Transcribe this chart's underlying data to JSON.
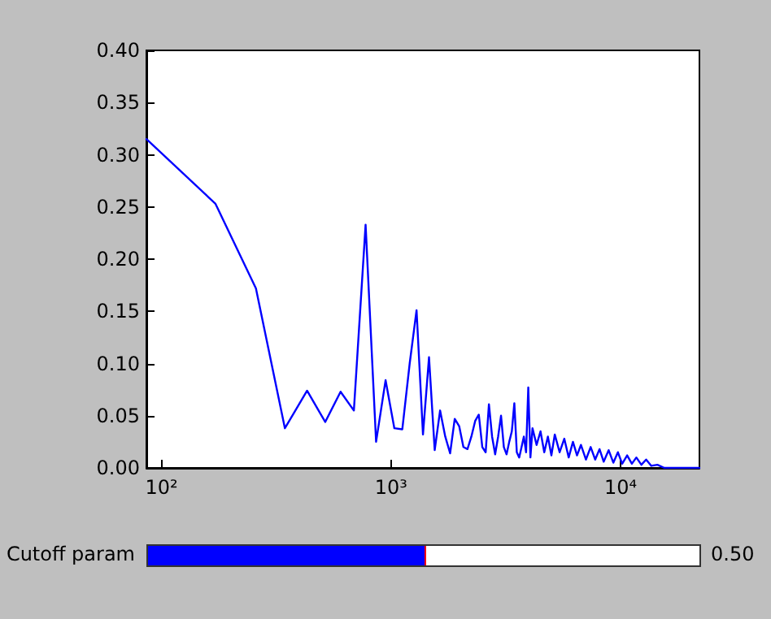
{
  "chart_data": {
    "type": "line",
    "log": "x",
    "grid": false,
    "marker": "none",
    "line_style": "solid",
    "x": [
      86,
      172,
      258,
      345,
      431,
      517,
      603,
      689,
      775,
      861,
      947,
      1034,
      1120,
      1206,
      1292,
      1378,
      1464,
      1550,
      1636,
      1723,
      1809,
      1895,
      1981,
      2067,
      2153,
      2239,
      2326,
      2412,
      2498,
      2584,
      2670,
      2756,
      2842,
      2928,
      3015,
      3101,
      3187,
      3273,
      3359,
      3445,
      3531,
      3617,
      3704,
      3790,
      3876,
      3962,
      4048,
      4134,
      4307,
      4479,
      4651,
      4823,
      4996,
      5168,
      5426,
      5685,
      5943,
      6201,
      6460,
      6718,
      7063,
      7407,
      7752,
      8096,
      8441,
      8871,
      9302,
      9733,
      10163,
      10680,
      11197,
      11714,
      12317,
      12920,
      13609,
      14470,
      15503,
      17226,
      22050
    ],
    "series": [
      {
        "color": "#0000ff",
        "values": [
          0.315,
          0.253,
          0.172,
          0.038,
          0.074,
          0.044,
          0.073,
          0.055,
          0.233,
          0.025,
          0.084,
          0.038,
          0.037,
          0.1,
          0.151,
          0.032,
          0.106,
          0.017,
          0.055,
          0.03,
          0.014,
          0.047,
          0.04,
          0.02,
          0.018,
          0.03,
          0.045,
          0.051,
          0.02,
          0.015,
          0.061,
          0.03,
          0.013,
          0.03,
          0.05,
          0.02,
          0.013,
          0.025,
          0.035,
          0.062,
          0.015,
          0.01,
          0.02,
          0.03,
          0.015,
          0.077,
          0.01,
          0.038,
          0.022,
          0.035,
          0.015,
          0.03,
          0.012,
          0.032,
          0.015,
          0.028,
          0.01,
          0.025,
          0.012,
          0.022,
          0.008,
          0.02,
          0.008,
          0.018,
          0.006,
          0.017,
          0.005,
          0.015,
          0.004,
          0.012,
          0.004,
          0.01,
          0.003,
          0.008,
          0.002,
          0.003,
          0,
          0,
          0
        ]
      }
    ],
    "xlim": [
      86,
      22050
    ],
    "xticks": [
      {
        "value": 100,
        "label": "10²"
      },
      {
        "value": 1000,
        "label": "10³"
      },
      {
        "value": 10000,
        "label": "10⁴"
      }
    ],
    "ylim": [
      0,
      0.4
    ],
    "yticks": [
      {
        "value": 0,
        "label": "0.00"
      },
      {
        "value": 0.05,
        "label": "0.05"
      },
      {
        "value": 0.1,
        "label": "0.10"
      },
      {
        "value": 0.15,
        "label": "0.15"
      },
      {
        "value": 0.2,
        "label": "0.20"
      },
      {
        "value": 0.25,
        "label": "0.25"
      },
      {
        "value": 0.3,
        "label": "0.30"
      },
      {
        "value": 0.35,
        "label": "0.35"
      },
      {
        "value": 0.4,
        "label": "0.40"
      }
    ],
    "annotations": [
      "Cutoff param",
      "0.50"
    ]
  }
}
